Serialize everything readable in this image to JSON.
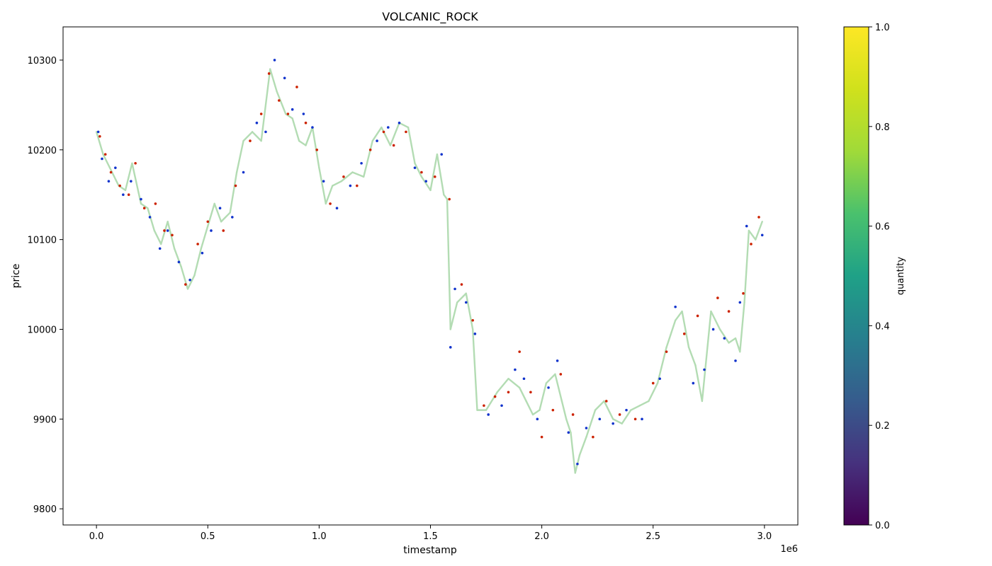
{
  "chart_data": {
    "type": "scatter",
    "title": "VOLCANIC_ROCK",
    "xlabel": "timestamp",
    "ylabel": "price",
    "x_offset_label": "1e6",
    "xlim": [
      -150000,
      3150000
    ],
    "ylim": [
      9782,
      10337
    ],
    "x_ticks": [
      0,
      500000,
      1000000,
      1500000,
      2000000,
      2500000,
      3000000
    ],
    "x_tick_labels": [
      "0.0",
      "0.5",
      "1.0",
      "1.5",
      "2.0",
      "2.5",
      "3.0"
    ],
    "y_ticks": [
      9800,
      9900,
      10000,
      10100,
      10200,
      10300
    ],
    "y_tick_labels": [
      "9800",
      "9900",
      "10000",
      "10100",
      "10200",
      "10300"
    ],
    "grid": false,
    "colorbar": {
      "label": "quantity",
      "range": [
        0,
        1
      ],
      "ticks": [
        "0.0",
        "0.2",
        "0.4",
        "0.6",
        "0.8",
        "1.0"
      ],
      "colormap": "viridis"
    },
    "series": [
      {
        "kind": "line",
        "color": "#b3dcb3",
        "x": [
          0,
          30000,
          60000,
          100000,
          130000,
          160000,
          200000,
          230000,
          260000,
          290000,
          320000,
          350000,
          380000,
          410000,
          440000,
          470000,
          500000,
          530000,
          560000,
          600000,
          630000,
          660000,
          700000,
          740000,
          780000,
          810000,
          850000,
          880000,
          910000,
          940000,
          970000,
          1000000,
          1030000,
          1060000,
          1100000,
          1150000,
          1200000,
          1240000,
          1280000,
          1320000,
          1360000,
          1400000,
          1430000,
          1460000,
          1500000,
          1530000,
          1560000,
          1575000,
          1590000,
          1620000,
          1660000,
          1690000,
          1710000,
          1750000,
          1800000,
          1850000,
          1900000,
          1930000,
          1960000,
          1990000,
          2020000,
          2060000,
          2090000,
          2110000,
          2130000,
          2150000,
          2170000,
          2200000,
          2240000,
          2280000,
          2320000,
          2360000,
          2400000,
          2440000,
          2480000,
          2520000,
          2560000,
          2600000,
          2630000,
          2660000,
          2690000,
          2720000,
          2760000,
          2800000,
          2840000,
          2870000,
          2890000,
          2910000,
          2930000,
          2960000,
          2990000
        ],
        "y": [
          10220,
          10195,
          10180,
          10160,
          10155,
          10185,
          10140,
          10135,
          10110,
          10095,
          10120,
          10090,
          10070,
          10045,
          10060,
          10090,
          10115,
          10140,
          10120,
          10130,
          10175,
          10210,
          10220,
          10210,
          10290,
          10265,
          10240,
          10235,
          10210,
          10205,
          10225,
          10180,
          10140,
          10160,
          10165,
          10175,
          10170,
          10210,
          10225,
          10205,
          10230,
          10225,
          10185,
          10170,
          10155,
          10195,
          10150,
          10145,
          10000,
          10030,
          10040,
          10000,
          9910,
          9910,
          9930,
          9945,
          9935,
          9920,
          9905,
          9910,
          9940,
          9950,
          9920,
          9900,
          9885,
          9840,
          9860,
          9880,
          9910,
          9920,
          9900,
          9895,
          9910,
          9915,
          9920,
          9940,
          9980,
          10010,
          10020,
          9980,
          9960,
          9920,
          10020,
          10000,
          9985,
          9990,
          9975,
          10030,
          10110,
          10100,
          10120
        ]
      },
      {
        "kind": "markers",
        "name": "red",
        "color": "#cc2200",
        "x": [
          15000,
          40000,
          65000,
          105000,
          145000,
          175000,
          215000,
          265000,
          305000,
          340000,
          400000,
          455000,
          500000,
          570000,
          625000,
          690000,
          740000,
          775000,
          820000,
          860000,
          900000,
          940000,
          990000,
          1050000,
          1110000,
          1170000,
          1230000,
          1290000,
          1335000,
          1390000,
          1460000,
          1520000,
          1585000,
          1640000,
          1690000,
          1740000,
          1790000,
          1850000,
          1900000,
          1950000,
          2000000,
          2050000,
          2085000,
          2140000,
          2230000,
          2290000,
          2350000,
          2420000,
          2500000,
          2560000,
          2640000,
          2700000,
          2790000,
          2840000,
          2905000,
          2940000,
          2975000
        ],
        "y": [
          10215,
          10195,
          10175,
          10160,
          10150,
          10185,
          10135,
          10140,
          10110,
          10105,
          10050,
          10095,
          10120,
          10110,
          10160,
          10210,
          10240,
          10285,
          10255,
          10240,
          10270,
          10230,
          10200,
          10140,
          10170,
          10160,
          10200,
          10220,
          10205,
          10220,
          10175,
          10170,
          10145,
          10050,
          10010,
          9915,
          9925,
          9930,
          9975,
          9930,
          9880,
          9910,
          9950,
          9905,
          9880,
          9920,
          9905,
          9900,
          9940,
          9975,
          9995,
          10015,
          10035,
          10020,
          10040,
          10095,
          10125
        ]
      },
      {
        "kind": "markers",
        "name": "blue",
        "color": "#1133cc",
        "x": [
          8000,
          25000,
          55000,
          85000,
          120000,
          155000,
          200000,
          240000,
          285000,
          320000,
          370000,
          420000,
          475000,
          515000,
          555000,
          610000,
          660000,
          720000,
          760000,
          800000,
          845000,
          880000,
          930000,
          970000,
          1020000,
          1080000,
          1140000,
          1190000,
          1260000,
          1310000,
          1360000,
          1430000,
          1480000,
          1550000,
          1590000,
          1610000,
          1660000,
          1700000,
          1760000,
          1820000,
          1880000,
          1920000,
          1980000,
          2030000,
          2070000,
          2120000,
          2160000,
          2200000,
          2260000,
          2320000,
          2380000,
          2450000,
          2530000,
          2600000,
          2680000,
          2730000,
          2770000,
          2820000,
          2870000,
          2890000,
          2920000,
          2990000
        ],
        "y": [
          10220,
          10190,
          10165,
          10180,
          10150,
          10165,
          10145,
          10125,
          10090,
          10110,
          10075,
          10055,
          10085,
          10110,
          10135,
          10125,
          10175,
          10230,
          10220,
          10300,
          10280,
          10245,
          10240,
          10225,
          10165,
          10135,
          10160,
          10185,
          10210,
          10225,
          10230,
          10180,
          10165,
          10195,
          9980,
          10045,
          10030,
          9995,
          9905,
          9915,
          9955,
          9945,
          9900,
          9935,
          9965,
          9885,
          9850,
          9890,
          9900,
          9895,
          9910,
          9900,
          9945,
          10025,
          9940,
          9955,
          10000,
          9990,
          9965,
          10030,
          10115,
          10105
        ]
      }
    ]
  }
}
